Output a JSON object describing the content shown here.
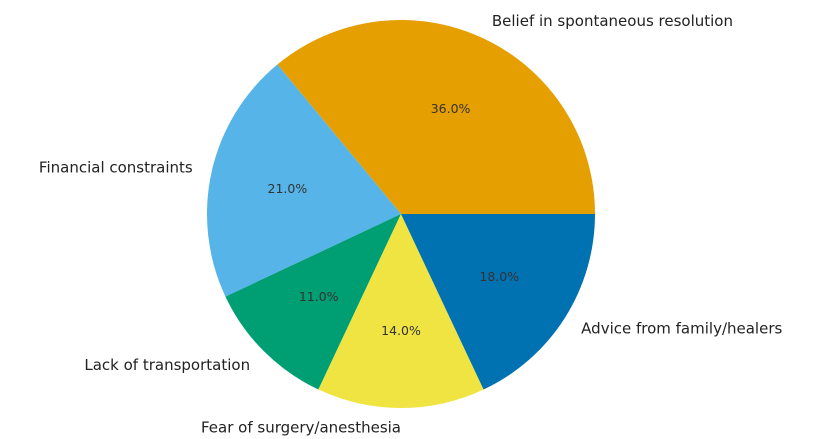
{
  "chart_data": {
    "type": "pie",
    "slices": [
      {
        "label": "Belief in spontaneous resolution",
        "value": 36.0,
        "pct_label": "36.0%",
        "color": "#E69F00"
      },
      {
        "label": "Financial constraints",
        "value": 21.0,
        "pct_label": "21.0%",
        "color": "#56B4E9"
      },
      {
        "label": "Lack of transportation",
        "value": 11.0,
        "pct_label": "11.0%",
        "color": "#009E73"
      },
      {
        "label": "Fear of surgery/anesthesia",
        "value": 14.0,
        "pct_label": "14.0%",
        "color": "#F0E442"
      },
      {
        "label": "Advice from family/healers",
        "value": 18.0,
        "pct_label": "18.0%",
        "color": "#0072B2"
      }
    ],
    "start_angle_deg": 0,
    "direction": "counterclockwise",
    "legend": "none"
  }
}
